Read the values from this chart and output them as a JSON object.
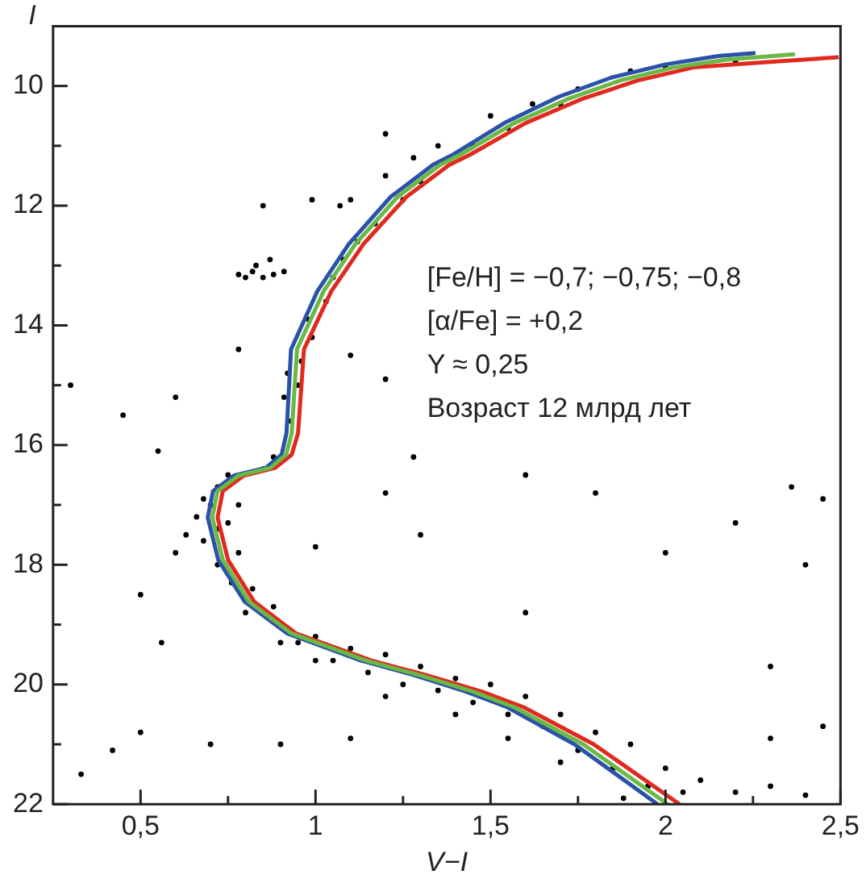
{
  "chart_data": {
    "type": "scatter",
    "xlabel": "V−I",
    "ylabel": "I",
    "xlim": [
      0.25,
      2.5
    ],
    "ylim": [
      22,
      9.0
    ],
    "xticks": [
      {
        "value": 0.5,
        "label": "0,5"
      },
      {
        "value": 0.75,
        "label": null
      },
      1,
      {
        "value": 1.25,
        "label": null
      },
      {
        "value": 1.5,
        "label": "1,5"
      },
      {
        "value": 1.75,
        "label": null
      },
      2,
      {
        "value": 2.25,
        "label": null
      },
      {
        "value": 2.5,
        "label": "2,5"
      }
    ],
    "yticks": [
      10,
      {
        "value": 11,
        "label": null
      },
      12,
      {
        "value": 13,
        "label": null
      },
      14,
      {
        "value": 15,
        "label": null
      },
      16,
      {
        "value": 17,
        "label": null
      },
      18,
      {
        "value": 19,
        "label": null
      },
      20,
      {
        "value": 21,
        "label": null
      },
      22
    ],
    "annotations": [
      "[Fe/H] = −0,7; −0,75; −0,8",
      "[α/Fe] = +0,2",
      "Y ≈ 0,25",
      "Возраст 12 млрд лет"
    ],
    "legend": false,
    "series": [
      {
        "type": "scatter",
        "marker": "circle",
        "color": "#000000",
        "x": [
          0.78,
          0.82,
          0.85,
          0.88,
          0.91,
          0.8,
          0.87,
          0.83,
          1.07,
          1.1,
          1.2,
          1.28,
          1.35,
          1.5,
          1.62,
          1.75,
          1.9,
          0.93,
          0.91,
          0.95,
          0.92,
          0.96,
          0.99,
          0.98,
          1.03,
          1.05,
          1.08,
          1.12,
          1.17,
          1.25,
          1.3,
          1.45,
          1.55,
          1.7,
          2.0,
          2.2,
          0.88,
          0.85,
          0.75,
          0.72,
          0.68,
          0.66,
          0.7,
          0.72,
          0.68,
          0.75,
          0.78,
          0.63,
          0.6,
          0.72,
          0.78,
          0.76,
          0.82,
          0.8,
          0.88,
          0.9,
          0.95,
          1.0,
          1.05,
          1.1,
          1.15,
          1.2,
          1.25,
          1.3,
          1.35,
          1.4,
          1.45,
          1.5,
          1.55,
          1.6,
          1.65,
          1.7,
          1.75,
          1.8,
          1.85,
          1.9,
          1.95,
          2.0,
          2.05,
          2.1,
          2.2,
          2.3,
          2.4,
          1.88,
          1.7,
          1.55,
          1.4,
          1.2,
          1.0,
          0.3,
          0.33,
          0.42,
          0.5,
          0.56,
          0.6,
          0.55,
          0.45,
          0.78,
          0.85,
          0.99,
          1.2,
          1.1,
          1.2,
          1.28,
          1.2,
          1.6,
          1.8,
          2.0,
          2.2,
          2.36,
          2.45,
          2.4,
          2.3,
          1.6,
          1.3,
          1.0,
          0.9,
          0.7,
          1.1,
          2.45,
          2.3,
          0.5
        ],
        "values": [
          13.15,
          13.1,
          13.2,
          13.15,
          13.1,
          13.2,
          12.9,
          13.0,
          12.0,
          11.9,
          11.5,
          11.2,
          11.0,
          10.5,
          10.3,
          10.05,
          9.75,
          15.6,
          15.2,
          15.0,
          14.8,
          14.6,
          14.2,
          13.9,
          13.6,
          13.2,
          12.9,
          12.6,
          12.3,
          11.9,
          11.6,
          11.0,
          10.7,
          10.3,
          9.7,
          9.6,
          16.2,
          16.4,
          16.5,
          16.7,
          16.9,
          17.2,
          17.0,
          17.4,
          17.6,
          17.3,
          17.0,
          17.5,
          17.8,
          18.0,
          17.8,
          18.3,
          18.4,
          18.8,
          18.7,
          19.3,
          19.3,
          19.2,
          19.6,
          19.4,
          19.8,
          19.5,
          20.0,
          19.7,
          20.1,
          19.9,
          20.3,
          20.0,
          20.5,
          20.2,
          20.7,
          20.5,
          21.1,
          20.8,
          21.4,
          21.0,
          21.7,
          21.4,
          21.8,
          21.6,
          21.8,
          21.7,
          21.85,
          21.9,
          21.3,
          20.9,
          20.5,
          20.2,
          19.6,
          15.0,
          21.5,
          21.1,
          18.5,
          19.3,
          15.2,
          16.1,
          15.5,
          14.4,
          12.0,
          11.9,
          10.8,
          14.5,
          14.9,
          16.2,
          16.8,
          16.5,
          16.8,
          17.8,
          17.3,
          16.7,
          16.9,
          18.0,
          19.7,
          18.8,
          17.5,
          17.7,
          21.0,
          21.0,
          20.9,
          20.7,
          20.9,
          20.8
        ]
      },
      {
        "type": "line",
        "marker": "none",
        "color": "#6ab845",
        "x": [
          2.006,
          1.765,
          1.568,
          1.45,
          1.3,
          1.144,
          0.932,
          0.81,
          0.735,
          0.705,
          0.72,
          0.78,
          0.871,
          0.916,
          0.932,
          0.947,
          1.023,
          1.114,
          1.235,
          1.356,
          1.416,
          1.568,
          1.72,
          1.87,
          2.023,
          2.174,
          2.37
        ],
        "values": [
          22.0,
          21.0,
          20.38,
          20.12,
          19.85,
          19.6,
          19.15,
          18.62,
          17.92,
          17.21,
          16.77,
          16.51,
          16.38,
          16.16,
          15.8,
          14.4,
          13.43,
          12.64,
          11.85,
          11.32,
          11.14,
          10.62,
          10.22,
          9.91,
          9.69,
          9.56,
          9.47
        ]
      },
      {
        "type": "line",
        "marker": "none",
        "color": "#e02a20",
        "x": [
          2.04,
          1.795,
          1.595,
          1.475,
          1.32,
          1.16,
          0.945,
          0.825,
          0.75,
          0.72,
          0.735,
          0.795,
          0.885,
          0.932,
          0.95,
          0.967,
          1.045,
          1.137,
          1.26,
          1.382,
          1.444,
          1.6,
          1.76,
          1.92,
          2.08,
          2.24,
          2.495
        ],
        "values": [
          22.0,
          21.0,
          20.38,
          20.12,
          19.85,
          19.6,
          19.15,
          18.62,
          17.92,
          17.21,
          16.77,
          16.51,
          16.38,
          16.16,
          15.8,
          14.4,
          13.43,
          12.64,
          11.85,
          11.32,
          11.14,
          10.62,
          10.22,
          9.91,
          9.69,
          9.62,
          9.52
        ]
      },
      {
        "type": "line",
        "marker": "none",
        "color": "#2a52a8",
        "x": [
          1.977,
          1.74,
          1.548,
          1.43,
          1.285,
          1.13,
          0.92,
          0.798,
          0.722,
          0.692,
          0.707,
          0.767,
          0.858,
          0.903,
          0.917,
          0.93,
          1.005,
          1.095,
          1.215,
          1.335,
          1.395,
          1.545,
          1.695,
          1.845,
          2.0,
          2.15,
          2.257
        ],
        "values": [
          22.0,
          21.0,
          20.38,
          20.12,
          19.85,
          19.6,
          19.15,
          18.62,
          17.92,
          17.21,
          16.77,
          16.51,
          16.38,
          16.16,
          15.8,
          14.4,
          13.43,
          12.64,
          11.85,
          11.32,
          11.14,
          10.6,
          10.18,
          9.86,
          9.64,
          9.5,
          9.45
        ]
      }
    ]
  }
}
